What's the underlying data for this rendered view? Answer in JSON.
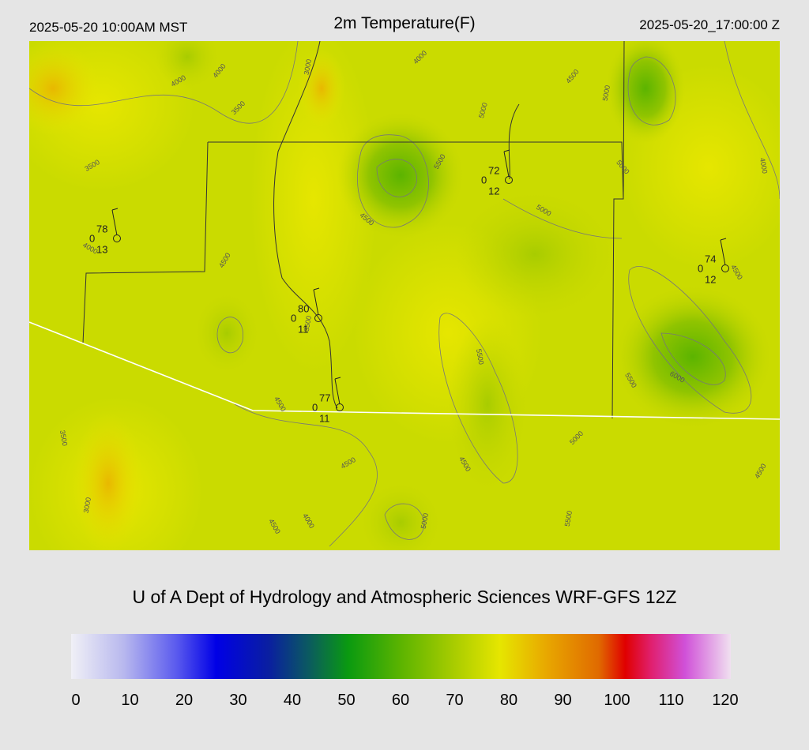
{
  "header": {
    "left": "2025-05-20 10:00AM MST",
    "title": "2m Temperature(F)",
    "right": "2025-05-20_17:00:00 Z"
  },
  "stations": [
    {
      "temp": "78",
      "dew": "0",
      "wind": "13"
    },
    {
      "temp": "72",
      "dew": "0",
      "wind": "12"
    },
    {
      "temp": "74",
      "dew": "0",
      "wind": "12"
    },
    {
      "temp": "80",
      "dew": "0",
      "wind": "11"
    },
    {
      "temp": "77",
      "dew": "0",
      "wind": "11"
    }
  ],
  "contour_labels": [
    "4000",
    "4000",
    "3500",
    "3000",
    "4000",
    "3500",
    "4000",
    "4500",
    "4500",
    "5500",
    "5000",
    "4500",
    "5000",
    "5000",
    "5000",
    "4000",
    "4500",
    "3500",
    "5500",
    "5500",
    "6000",
    "4500",
    "3500",
    "4500",
    "4500",
    "5000",
    "4500",
    "3000",
    "4500",
    "4000",
    "5000",
    "5500"
  ],
  "footer": "U of A Dept of Hydrology and Atmospheric Sciences WRF-GFS 12Z",
  "colorbar": {
    "ticks": [
      "0",
      "10",
      "20",
      "30",
      "40",
      "50",
      "60",
      "70",
      "80",
      "90",
      "100",
      "110",
      "120"
    ]
  }
}
